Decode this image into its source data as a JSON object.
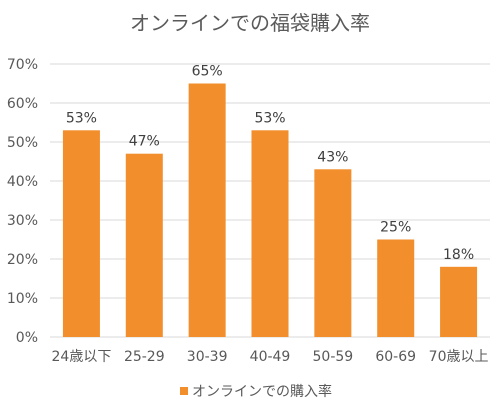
{
  "chart_data": {
    "type": "bar",
    "title": "オンラインでの福袋購入率",
    "categories": [
      "24歳以下",
      "25-29",
      "30-39",
      "40-49",
      "50-59",
      "60-69",
      "70歳以上"
    ],
    "series": [
      {
        "name": "オンラインでの購入率",
        "values": [
          53,
          47,
          65,
          53,
          43,
          25,
          18
        ],
        "data_labels": [
          "53%",
          "47%",
          "65%",
          "53%",
          "43%",
          "25%",
          "18%"
        ],
        "color": "#F28E2B"
      }
    ],
    "ylim": [
      0,
      70
    ],
    "yticks": [
      0,
      10,
      20,
      30,
      40,
      50,
      60,
      70
    ],
    "ytick_labels": [
      "0%",
      "10%",
      "20%",
      "30%",
      "40%",
      "50%",
      "60%",
      "70%"
    ],
    "grid": true,
    "gridline_color": "#d9d9d9",
    "legend_position": "bottom",
    "xlabel": "",
    "ylabel": ""
  }
}
